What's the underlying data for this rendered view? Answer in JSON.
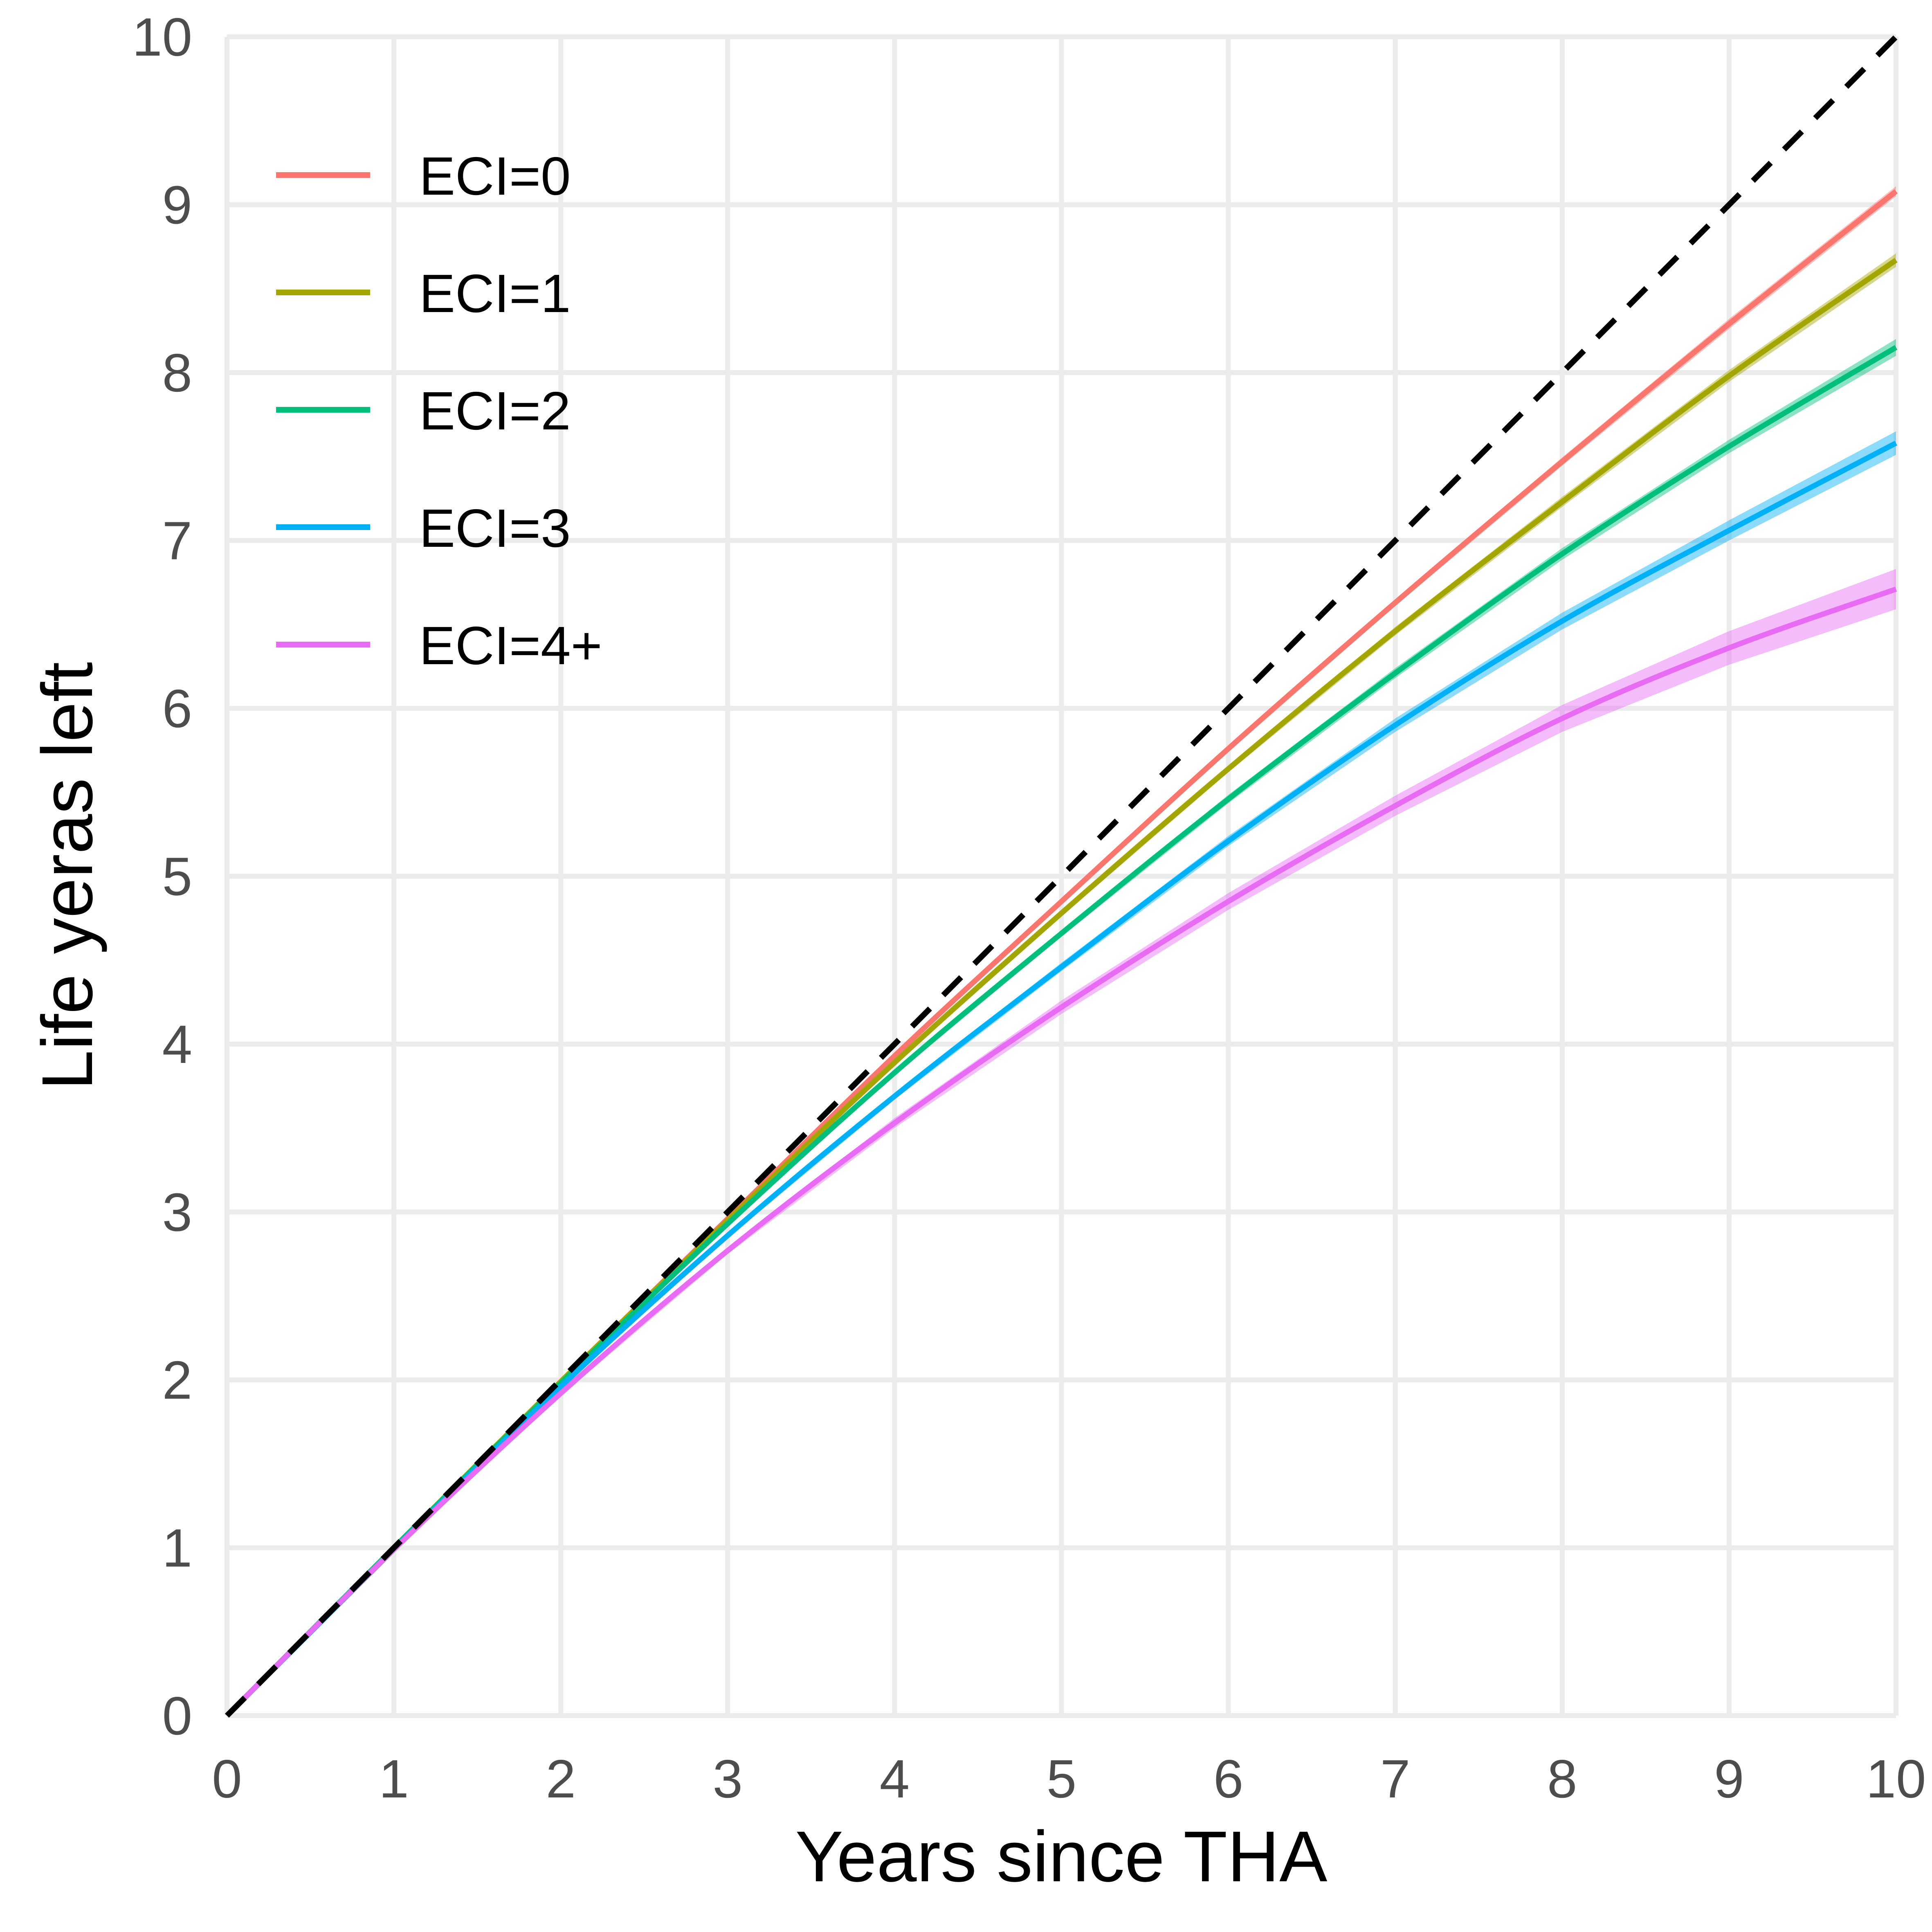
{
  "chart_data": {
    "type": "line",
    "title": "",
    "xlabel": "Years since THA",
    "ylabel": "Life yeras left",
    "xlim": [
      0,
      10
    ],
    "ylim": [
      0,
      10
    ],
    "x_ticks": [
      "0",
      "1",
      "2",
      "3",
      "4",
      "5",
      "6",
      "7",
      "8",
      "9",
      "10"
    ],
    "y_ticks": [
      "0",
      "1",
      "2",
      "3",
      "4",
      "5",
      "6",
      "7",
      "8",
      "9",
      "10"
    ],
    "grid": true,
    "legend_position": "top-left",
    "reference_line": {
      "style": "dashed",
      "color": "#000000",
      "x": [
        0,
        10
      ],
      "y": [
        0,
        10
      ]
    },
    "series": [
      {
        "name": "ECI=0",
        "color": "#F8766D",
        "x": [
          0,
          1,
          2,
          3,
          4,
          5,
          6,
          7,
          8,
          9,
          10
        ],
        "y": [
          0,
          1.0,
          1.99,
          2.96,
          3.93,
          4.85,
          5.76,
          6.63,
          7.47,
          8.29,
          9.08
        ],
        "band": [
          0,
          0,
          0.005,
          0.01,
          0.01,
          0.015,
          0.02,
          0.02,
          0.025,
          0.03,
          0.03
        ]
      },
      {
        "name": "ECI=1",
        "color": "#A3A500",
        "x": [
          0,
          1,
          2,
          3,
          4,
          5,
          6,
          7,
          8,
          9,
          10
        ],
        "y": [
          0,
          1.0,
          1.99,
          2.95,
          3.89,
          4.78,
          5.64,
          6.46,
          7.23,
          7.98,
          8.67
        ],
        "band": [
          0,
          0,
          0.005,
          0.01,
          0.015,
          0.02,
          0.02,
          0.025,
          0.03,
          0.035,
          0.04
        ]
      },
      {
        "name": "ECI=2",
        "color": "#00BF7D",
        "x": [
          0,
          1,
          2,
          3,
          4,
          5,
          6,
          7,
          8,
          9,
          10
        ],
        "y": [
          0,
          1.0,
          1.98,
          2.93,
          3.83,
          4.66,
          5.46,
          6.21,
          6.92,
          7.56,
          8.15
        ],
        "band": [
          0,
          0,
          0.005,
          0.01,
          0.015,
          0.02,
          0.025,
          0.03,
          0.035,
          0.04,
          0.05
        ]
      },
      {
        "name": "ECI=3",
        "color": "#00B0F6",
        "x": [
          0,
          1,
          2,
          3,
          4,
          5,
          6,
          7,
          8,
          9,
          10
        ],
        "y": [
          0,
          0.99,
          1.96,
          2.86,
          3.69,
          4.46,
          5.21,
          5.9,
          6.52,
          7.06,
          7.58
        ],
        "band": [
          0,
          0,
          0.01,
          0.015,
          0.02,
          0.025,
          0.03,
          0.04,
          0.05,
          0.06,
          0.07
        ]
      },
      {
        "name": "ECI=4+",
        "color": "#E76BF3",
        "x": [
          0,
          1,
          2,
          3,
          4,
          5,
          6,
          7,
          8,
          9,
          10
        ],
        "y": [
          0,
          0.99,
          1.92,
          2.77,
          3.53,
          4.22,
          4.85,
          5.42,
          5.94,
          6.36,
          6.71
        ],
        "band": [
          0,
          0.005,
          0.015,
          0.02,
          0.03,
          0.04,
          0.05,
          0.06,
          0.08,
          0.1,
          0.12
        ]
      }
    ]
  }
}
